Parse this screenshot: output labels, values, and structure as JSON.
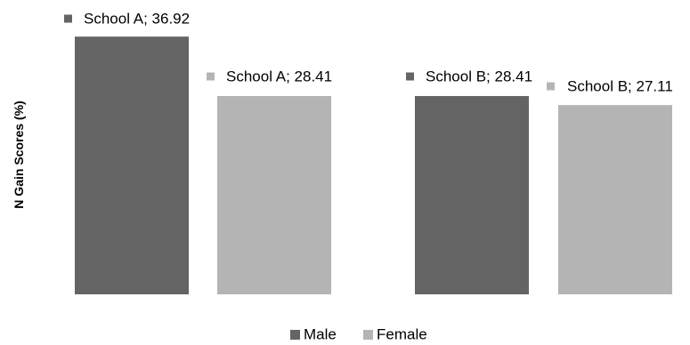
{
  "chart_data": {
    "type": "bar",
    "ylabel": "N Gain Scores (%)",
    "ylim": [
      0,
      40
    ],
    "grid": false,
    "legend_position": "bottom",
    "groups": [
      {
        "name": "School A",
        "bars": [
          {
            "series": "Male",
            "value": 36.92,
            "label": "School A; 36.92"
          },
          {
            "series": "Female",
            "value": 28.41,
            "label": "School A; 28.41"
          }
        ]
      },
      {
        "name": "School B",
        "bars": [
          {
            "series": "Male",
            "value": 28.41,
            "label": "School B; 28.41"
          },
          {
            "series": "Female",
            "value": 27.11,
            "label": "School B; 27.11"
          }
        ]
      }
    ],
    "series": [
      {
        "name": "Male",
        "color": "#646464"
      },
      {
        "name": "Female",
        "color": "#b4b4b4"
      }
    ]
  }
}
